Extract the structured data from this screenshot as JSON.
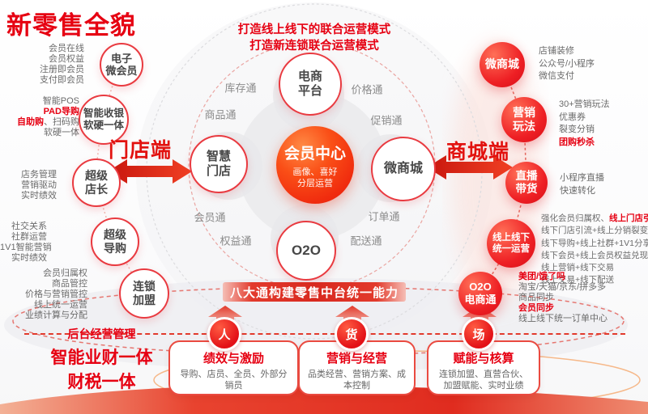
{
  "colors": {
    "accent": "#e60012",
    "note_gray": "#6b6b6b",
    "hub_orange": "#f4390e"
  },
  "title": "新零售全貌",
  "subtitle": [
    "打造线上线下的联合运营模式",
    "打造新连锁联合运营模式"
  ],
  "hub": {
    "title": "会员中心",
    "sub": [
      "画像、喜好",
      "分层运营"
    ]
  },
  "ring": {
    "satellites": [
      [
        "电商",
        "平台"
      ],
      [
        "智慧",
        "门店"
      ],
      [
        "微商城"
      ],
      [
        "O2O"
      ]
    ],
    "labels": [
      "库存通",
      "价格通",
      "商品通",
      "促销通",
      "会员通",
      "订单通",
      "权益通",
      "配送通"
    ]
  },
  "store_side": {
    "label": "门店端",
    "groups": [
      {
        "circle": [
          "电子",
          "微会员"
        ],
        "notes": [
          [
            "会员在线"
          ],
          [
            "会员权益"
          ],
          [
            "注册即会员"
          ],
          [
            "支付即会员"
          ]
        ]
      },
      {
        "circle": [
          "智能收银",
          "软硬一体"
        ],
        "notes": [
          [
            "智能POS"
          ],
          [
            {
              "t": "PAD导购",
              "r": true
            }
          ],
          [
            {
              "t": "自助购",
              "r": true
            },
            "、扫码购"
          ],
          [
            "软硬一体"
          ]
        ]
      },
      {
        "circle": [
          "超级",
          "店长"
        ],
        "notes": [
          [
            "店务管理"
          ],
          [
            "营销驱动"
          ],
          [
            "实时绩效"
          ]
        ]
      },
      {
        "circle": [
          "超级",
          "导购"
        ],
        "notes": [
          [
            "社交关系"
          ],
          [
            "社群运营"
          ],
          [
            "1V1智能营销"
          ],
          [
            "实时绩效"
          ]
        ]
      },
      {
        "circle": [
          "连锁",
          "加盟"
        ],
        "notes": [
          [
            "会员归属权"
          ],
          [
            "商品管控"
          ],
          [
            "价格与营销管控"
          ],
          [
            "线上统一运营"
          ],
          [
            "业绩计算与分配"
          ]
        ]
      }
    ]
  },
  "mall_side": {
    "label": "商城端",
    "groups": [
      {
        "circle": [
          "微商城"
        ],
        "notes": [
          [
            "店铺装修"
          ],
          [
            "公众号/小程序"
          ],
          [
            "微信支付"
          ]
        ]
      },
      {
        "circle": [
          "营销",
          "玩法"
        ],
        "notes": [
          [
            "30+营销玩法"
          ],
          [
            "优惠券"
          ],
          [
            "裂变分销"
          ],
          [
            {
              "t": "团购秒杀",
              "r": true
            }
          ]
        ]
      },
      {
        "circle": [
          "直播",
          "带货"
        ],
        "notes": [
          [
            "小程序直播"
          ],
          [
            "快速转化"
          ]
        ]
      },
      {
        "circle": [
          "线上线下",
          "统一运营"
        ],
        "notes": [
          [
            "强化会员归属权、",
            {
              "t": "线上门店引导",
              "r": true
            }
          ],
          [
            "线下门店引流+线上分销裂变"
          ],
          [
            "线下导购+线上社群+1V1分享"
          ],
          [
            "线下会员+线上会员权益兑现"
          ],
          [
            "线上营销+线下交易"
          ],
          [
            "线上交易+线下配送"
          ]
        ]
      },
      {
        "circle": [
          "O2O",
          "电商通"
        ],
        "notes": [
          [
            {
              "t": "美团/饿了吗",
              "r": true
            }
          ],
          [
            "淘宝/天猫/京东/拼多多"
          ],
          [
            "商品同步"
          ],
          [
            {
              "t": "会员同步",
              "r": true
            }
          ],
          [
            "线上线下统一订单中心"
          ]
        ]
      }
    ]
  },
  "bottom": {
    "bar": "八大通构建零售中台统一能力",
    "back_office": [
      "后台经营管理",
      "智能业财一体",
      "财税一体"
    ],
    "pillars": [
      {
        "badge": "人",
        "title": "绩效与激励",
        "desc": "导购、店员、全员、外部分销员"
      },
      {
        "badge": "货",
        "title": "营销与经营",
        "desc": "品类经营、营销方案、成本控制"
      },
      {
        "badge": "场",
        "title": "赋能与核算",
        "desc": "连锁加盟、直营合伙、加盟赋能、实时业绩"
      }
    ]
  }
}
